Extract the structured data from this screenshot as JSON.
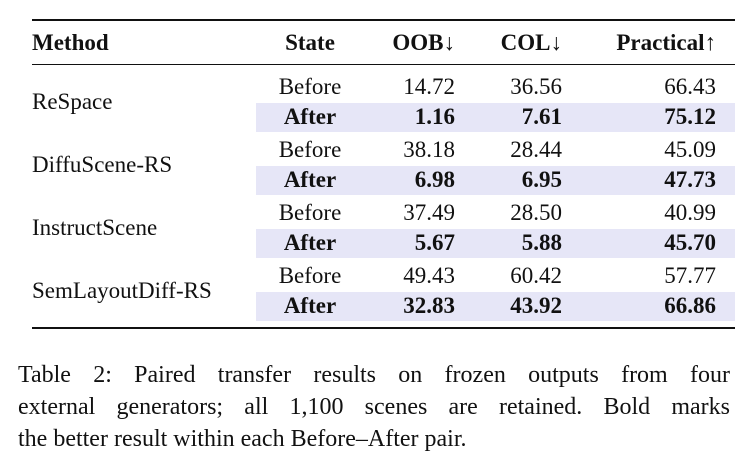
{
  "table": {
    "header": [
      "Method",
      "State",
      "OOB↓",
      "COL↓",
      "Practical↑"
    ],
    "groups": [
      {
        "method": "ReSpace",
        "rows": [
          [
            "Before",
            "14.72",
            "36.56",
            "66.43"
          ],
          [
            "After",
            "1.16",
            "7.61",
            "75.12"
          ]
        ]
      },
      {
        "method": "DiffuScene-RS",
        "rows": [
          [
            "Before",
            "38.18",
            "28.44",
            "45.09"
          ],
          [
            "After",
            "6.98",
            "6.95",
            "47.73"
          ]
        ]
      },
      {
        "method": "InstructScene",
        "rows": [
          [
            "Before",
            "37.49",
            "28.50",
            "40.99"
          ],
          [
            "After",
            "5.67",
            "5.88",
            "45.70"
          ]
        ]
      },
      {
        "method": "SemLayoutDiff-RS",
        "rows": [
          [
            "Before",
            "49.43",
            "60.42",
            "57.77"
          ],
          [
            "After",
            "32.83",
            "43.92",
            "66.86"
          ]
        ]
      }
    ]
  },
  "caption": {
    "lines": [
      "Table 2: Paired transfer results on frozen outputs from four",
      "external generators; all 1,100 scenes are retained. Bold marks",
      "the better result within each Before–After pair."
    ]
  }
}
